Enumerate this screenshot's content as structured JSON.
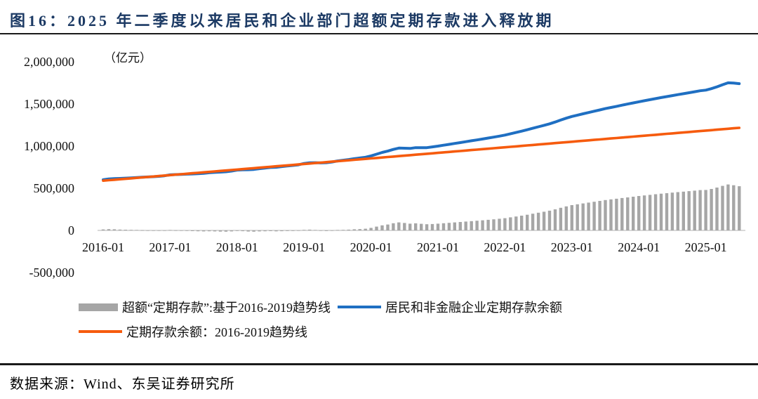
{
  "figure": {
    "title": "图16：2025 年二季度以来居民和企业部门超额定期存款进入释放期",
    "unit_label": "（亿元）",
    "source": "数据来源：Wind、东吴证券研究所"
  },
  "legend": {
    "excess": "超额“定期存款”:基于2016-2019趋势线",
    "actual": "居民和非金融企业定期存款余额",
    "trend": "定期存款余额：2016-2019趋势线"
  },
  "colors": {
    "title": "#1c3a64",
    "actual_line": "#1f6fc2",
    "trend_line": "#f65b0e",
    "excess_bar": "#a6a6a6",
    "axis_line": "#d9d9d9"
  },
  "chart_data": {
    "type": "bar",
    "subtype": "combo-bar-plus-two-lines",
    "title": "2025 年二季度以来居民和企业部门超额定期存款进入释放期",
    "xlabel": "",
    "ylabel": "亿元",
    "ylim": [
      -500000,
      2000000
    ],
    "grid": false,
    "legend_position": "bottom",
    "y_ticks": [
      {
        "label": "2,000,000",
        "value": 2000000
      },
      {
        "label": "1,500,000",
        "value": 1500000
      },
      {
        "label": "1,000,000",
        "value": 1000000
      },
      {
        "label": "500,000",
        "value": 500000
      },
      {
        "label": "0",
        "value": 0
      },
      {
        "label": "-500,000",
        "value": -500000
      }
    ],
    "x_tick_labels": [
      "2016-01",
      "2017-01",
      "2018-01",
      "2019-01",
      "2020-01",
      "2021-01",
      "2022-01",
      "2023-01",
      "2024-01",
      "2025-01"
    ],
    "x": [
      "2016-01",
      "2016-02",
      "2016-03",
      "2016-04",
      "2016-05",
      "2016-06",
      "2016-07",
      "2016-08",
      "2016-09",
      "2016-10",
      "2016-11",
      "2016-12",
      "2017-01",
      "2017-02",
      "2017-03",
      "2017-04",
      "2017-05",
      "2017-06",
      "2017-07",
      "2017-08",
      "2017-09",
      "2017-10",
      "2017-11",
      "2017-12",
      "2018-01",
      "2018-02",
      "2018-03",
      "2018-04",
      "2018-05",
      "2018-06",
      "2018-07",
      "2018-08",
      "2018-09",
      "2018-10",
      "2018-11",
      "2018-12",
      "2019-01",
      "2019-02",
      "2019-03",
      "2019-04",
      "2019-05",
      "2019-06",
      "2019-07",
      "2019-08",
      "2019-09",
      "2019-10",
      "2019-11",
      "2019-12",
      "2020-01",
      "2020-02",
      "2020-03",
      "2020-04",
      "2020-05",
      "2020-06",
      "2020-07",
      "2020-08",
      "2020-09",
      "2020-10",
      "2020-11",
      "2020-12",
      "2021-01",
      "2021-02",
      "2021-03",
      "2021-04",
      "2021-05",
      "2021-06",
      "2021-07",
      "2021-08",
      "2021-09",
      "2021-10",
      "2021-11",
      "2021-12",
      "2022-01",
      "2022-02",
      "2022-03",
      "2022-04",
      "2022-05",
      "2022-06",
      "2022-07",
      "2022-08",
      "2022-09",
      "2022-10",
      "2022-11",
      "2022-12",
      "2023-01",
      "2023-02",
      "2023-03",
      "2023-04",
      "2023-05",
      "2023-06",
      "2023-07",
      "2023-08",
      "2023-09",
      "2023-10",
      "2023-11",
      "2023-12",
      "2024-01",
      "2024-02",
      "2024-03",
      "2024-04",
      "2024-05",
      "2024-06",
      "2024-07",
      "2024-08",
      "2024-09",
      "2024-10",
      "2024-11",
      "2024-12",
      "2025-01",
      "2025-02",
      "2025-03",
      "2025-04",
      "2025-05",
      "2025-06",
      "2025-07"
    ],
    "series": [
      {
        "name": "超额“定期存款”:基于2016-2019趋势线",
        "type": "bar",
        "color": "#a6a6a6",
        "values": [
          12000,
          15000,
          13000,
          10000,
          8000,
          6000,
          4000,
          2000,
          0,
          -2000,
          -3000,
          -2000,
          3000,
          1000,
          -2000,
          -5000,
          -8000,
          -10000,
          -12000,
          -10000,
          -12000,
          -14000,
          -15000,
          -12000,
          -6000,
          -9000,
          -13000,
          -15000,
          -12000,
          -10000,
          -8000,
          -11000,
          -9000,
          -7000,
          -6000,
          -4000,
          6000,
          9000,
          4000,
          -4000,
          -7000,
          -4000,
          3000,
          6000,
          9000,
          13000,
          16000,
          20000,
          30000,
          45000,
          60000,
          70000,
          85000,
          95000,
          88000,
          80000,
          84000,
          78000,
          73000,
          76000,
          80000,
          85000,
          90000,
          95000,
          100000,
          105000,
          110000,
          115000,
          120000,
          126000,
          132000,
          138000,
          145000,
          155000,
          165000,
          175000,
          186000,
          198000,
          210000,
          222000,
          234000,
          250000,
          268000,
          285000,
          300000,
          310000,
          320000,
          330000,
          340000,
          350000,
          360000,
          368000,
          376000,
          384000,
          392000,
          400000,
          408000,
          415000,
          422000,
          429000,
          436000,
          442000,
          448000,
          454000,
          460000,
          466000,
          472000,
          478000,
          480000,
          492000,
          508000,
          528000,
          545000,
          536000,
          524000
        ]
      },
      {
        "name": "居民和非金融企业定期存款余额",
        "type": "line",
        "color": "#1f6fc2",
        "values": [
          602000,
          610500,
          614000,
          616500,
          620000,
          623500,
          627000,
          630500,
          634000,
          637500,
          642000,
          648500,
          659000,
          662500,
          665000,
          667500,
          670000,
          673500,
          677000,
          684500,
          688000,
          691500,
          696000,
          704500,
          716000,
          718500,
          720000,
          723500,
          732000,
          739500,
          747000,
          749500,
          757000,
          764500,
          771000,
          778500,
          794000,
          802500,
          803000,
          800500,
          803000,
          811500,
          824000,
          832500,
          841000,
          850500,
          859000,
          868500,
          884000,
          904500,
          925000,
          940500,
          961000,
          976500,
          975000,
          972500,
          982000,
          981500,
          982000,
          990500,
          1000000,
          1010500,
          1021000,
          1031500,
          1042000,
          1052500,
          1063000,
          1073500,
          1084000,
          1095500,
          1107000,
          1118500,
          1131000,
          1146500,
          1162000,
          1177500,
          1194000,
          1211500,
          1229000,
          1246500,
          1264000,
          1285500,
          1309000,
          1331500,
          1352000,
          1367500,
          1383000,
          1398500,
          1414000,
          1429500,
          1445000,
          1458500,
          1472000,
          1485500,
          1499000,
          1512500,
          1526000,
          1538500,
          1551000,
          1563500,
          1576000,
          1587500,
          1599000,
          1610500,
          1622000,
          1633500,
          1645000,
          1656500,
          1664000,
          1681500,
          1703000,
          1728500,
          1751000,
          1747500,
          1741000
        ]
      },
      {
        "name": "定期存款余额：2016-2019趋势线",
        "type": "line",
        "color": "#f65b0e",
        "values": [
          590000,
          595500,
          601000,
          606500,
          612000,
          617500,
          623000,
          628500,
          634000,
          639500,
          645000,
          650500,
          656000,
          661500,
          667000,
          672500,
          678000,
          683500,
          689000,
          694500,
          700000,
          705500,
          711000,
          716500,
          722000,
          727500,
          733000,
          738500,
          744000,
          749500,
          755000,
          760500,
          766000,
          771500,
          777000,
          782500,
          788000,
          793500,
          799000,
          804500,
          810000,
          815500,
          821000,
          826500,
          832000,
          837500,
          843000,
          848500,
          854000,
          859500,
          865000,
          870500,
          876000,
          881500,
          887000,
          892500,
          898000,
          903500,
          909000,
          914500,
          920000,
          925500,
          931000,
          936500,
          942000,
          947500,
          953000,
          958500,
          964000,
          969500,
          975000,
          980500,
          986000,
          991500,
          997000,
          1002500,
          1008000,
          1013500,
          1019000,
          1024500,
          1030000,
          1035500,
          1041000,
          1046500,
          1052000,
          1057500,
          1063000,
          1068500,
          1074000,
          1079500,
          1085000,
          1090500,
          1096000,
          1101500,
          1107000,
          1112500,
          1118000,
          1123500,
          1129000,
          1134500,
          1140000,
          1145500,
          1151000,
          1156500,
          1162000,
          1167500,
          1173000,
          1178500,
          1184000,
          1189500,
          1195000,
          1200500,
          1206000,
          1211500,
          1217000
        ]
      }
    ]
  }
}
